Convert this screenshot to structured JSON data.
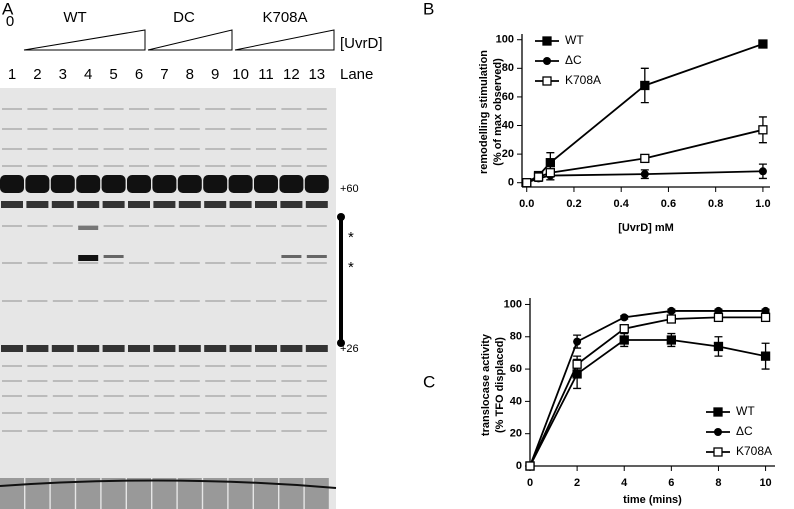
{
  "gel": {
    "panel": "A",
    "zero": "0",
    "groups": [
      "WT",
      "DC",
      "K708A"
    ],
    "conc_label": "[UvrD]",
    "lanes": [
      1,
      2,
      3,
      4,
      5,
      6,
      7,
      8,
      9,
      10,
      11,
      12,
      13
    ],
    "lane_label": "Lane",
    "marker_top": "+60",
    "marker_bottom": "+26",
    "stars": [
      "*",
      "*"
    ]
  },
  "chart_data": [
    {
      "type": "line",
      "panel": "B",
      "xlabel": "[UvrD] mM",
      "ylabel": [
        "remodelling stimulation",
        "(% of max observed)"
      ],
      "x": [
        0,
        0.05,
        0.1,
        0.5,
        1.0
      ],
      "series": [
        {
          "name": "WT",
          "color": "#000000",
          "marker": "square",
          "values": [
            0,
            5,
            14,
            68,
            97
          ],
          "errors": [
            0,
            2,
            7,
            12,
            2
          ]
        },
        {
          "name": "ΔC",
          "color": "#000000",
          "marker": "circle",
          "values": [
            0,
            3,
            5,
            6,
            8
          ],
          "errors": [
            0,
            2,
            3,
            3,
            5
          ]
        },
        {
          "name": "K708A",
          "color": "#000000",
          "marker": "open-square",
          "values": [
            0,
            4,
            7,
            17,
            37
          ],
          "errors": [
            0,
            3,
            5,
            2,
            9
          ]
        }
      ],
      "xlim": [
        -0.02,
        1.03
      ],
      "ylim": [
        -3,
        104
      ],
      "xticks": [
        {
          "value": 0,
          "label": "0.0"
        },
        {
          "value": 0.2,
          "label": "0.2"
        },
        {
          "value": 0.4,
          "label": "0.4"
        },
        {
          "value": 0.6,
          "label": "0.6"
        },
        {
          "value": 0.8,
          "label": "0.8"
        },
        {
          "value": 1,
          "label": "1.0"
        }
      ],
      "yticks": [
        0,
        20,
        40,
        60,
        80,
        100
      ],
      "legend": "upper left"
    },
    {
      "type": "line",
      "panel": "C",
      "xlabel": "time (mins)",
      "ylabel": [
        "translocase activity",
        "(% TFO displaced)"
      ],
      "x": [
        0,
        2,
        4,
        6,
        8,
        10
      ],
      "series": [
        {
          "name": "WT",
          "color": "#000000",
          "marker": "square",
          "values": [
            0,
            57,
            78,
            78,
            74,
            68
          ],
          "errors": [
            0,
            9,
            4,
            4,
            6,
            8
          ]
        },
        {
          "name": "ΔC",
          "color": "#000000",
          "marker": "circle",
          "values": [
            0,
            77,
            92,
            96,
            96,
            96
          ],
          "errors": [
            0,
            4,
            1,
            1,
            1,
            1
          ]
        },
        {
          "name": "K708A",
          "color": "#000000",
          "marker": "open-square",
          "values": [
            0,
            63,
            85,
            91,
            92,
            92
          ],
          "errors": [
            0,
            5,
            2,
            2,
            2,
            2
          ]
        }
      ],
      "xlim": [
        0,
        10.4
      ],
      "ylim": [
        0,
        104
      ],
      "xticks": [
        0,
        2,
        4,
        6,
        8,
        10
      ],
      "yticks": [
        0,
        20,
        40,
        60,
        80,
        100
      ],
      "legend": "lower right"
    }
  ]
}
